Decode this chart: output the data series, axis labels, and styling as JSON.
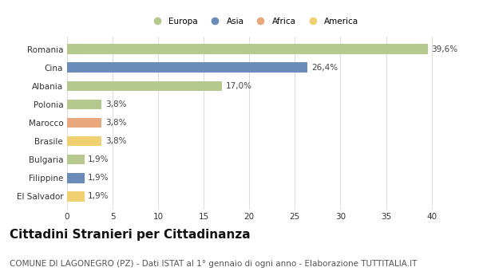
{
  "categories": [
    "Romania",
    "Cina",
    "Albania",
    "Polonia",
    "Marocco",
    "Brasile",
    "Bulgaria",
    "Filippine",
    "El Salvador"
  ],
  "values": [
    39.6,
    26.4,
    17.0,
    3.8,
    3.8,
    3.8,
    1.9,
    1.9,
    1.9
  ],
  "labels": [
    "39,6%",
    "26,4%",
    "17,0%",
    "3,8%",
    "3,8%",
    "3,8%",
    "1,9%",
    "1,9%",
    "1,9%"
  ],
  "colors": [
    "#b5c98e",
    "#6b8cba",
    "#b5c98e",
    "#b5c98e",
    "#e8a77c",
    "#f0d070",
    "#b5c98e",
    "#6b8cba",
    "#f0d070"
  ],
  "legend": [
    {
      "label": "Europa",
      "color": "#b5c98e"
    },
    {
      "label": "Asia",
      "color": "#6b8cba"
    },
    {
      "label": "Africa",
      "color": "#e8a77c"
    },
    {
      "label": "America",
      "color": "#f0d070"
    }
  ],
  "xlim": [
    0,
    41
  ],
  "xticks": [
    0,
    5,
    10,
    15,
    20,
    25,
    30,
    35,
    40
  ],
  "title": "Cittadini Stranieri per Cittadinanza",
  "subtitle": "COMUNE DI LAGONEGRO (PZ) - Dati ISTAT al 1° gennaio di ogni anno - Elaborazione TUTTITALIA.IT",
  "background_color": "#ffffff",
  "grid_color": "#dddddd",
  "bar_height": 0.55,
  "title_fontsize": 11,
  "subtitle_fontsize": 7.5,
  "label_fontsize": 7.5,
  "tick_fontsize": 7.5
}
